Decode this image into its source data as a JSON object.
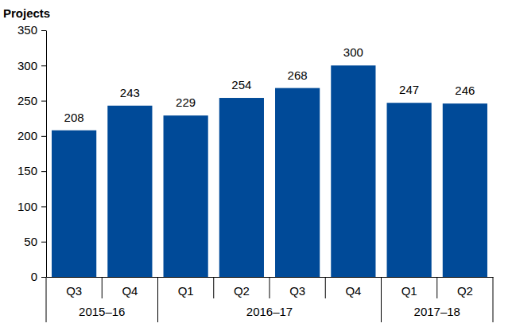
{
  "chart_data": {
    "type": "bar",
    "y_label": "Projects",
    "categories": [
      "Q3",
      "Q4",
      "Q1",
      "Q2",
      "Q3",
      "Q4",
      "Q1",
      "Q2"
    ],
    "category_groups": [
      "2015–16",
      "2015–16",
      "2016–17",
      "2016–17",
      "2016–17",
      "2016–17",
      "2017–18",
      "2017–18"
    ],
    "values": [
      208,
      243,
      229,
      254,
      268,
      300,
      247,
      246
    ],
    "color": "#004a98",
    "ylim": [
      0,
      350
    ],
    "yticks": [
      0,
      50,
      100,
      150,
      200,
      250,
      300,
      350
    ],
    "grid": false,
    "data_labels": true
  }
}
